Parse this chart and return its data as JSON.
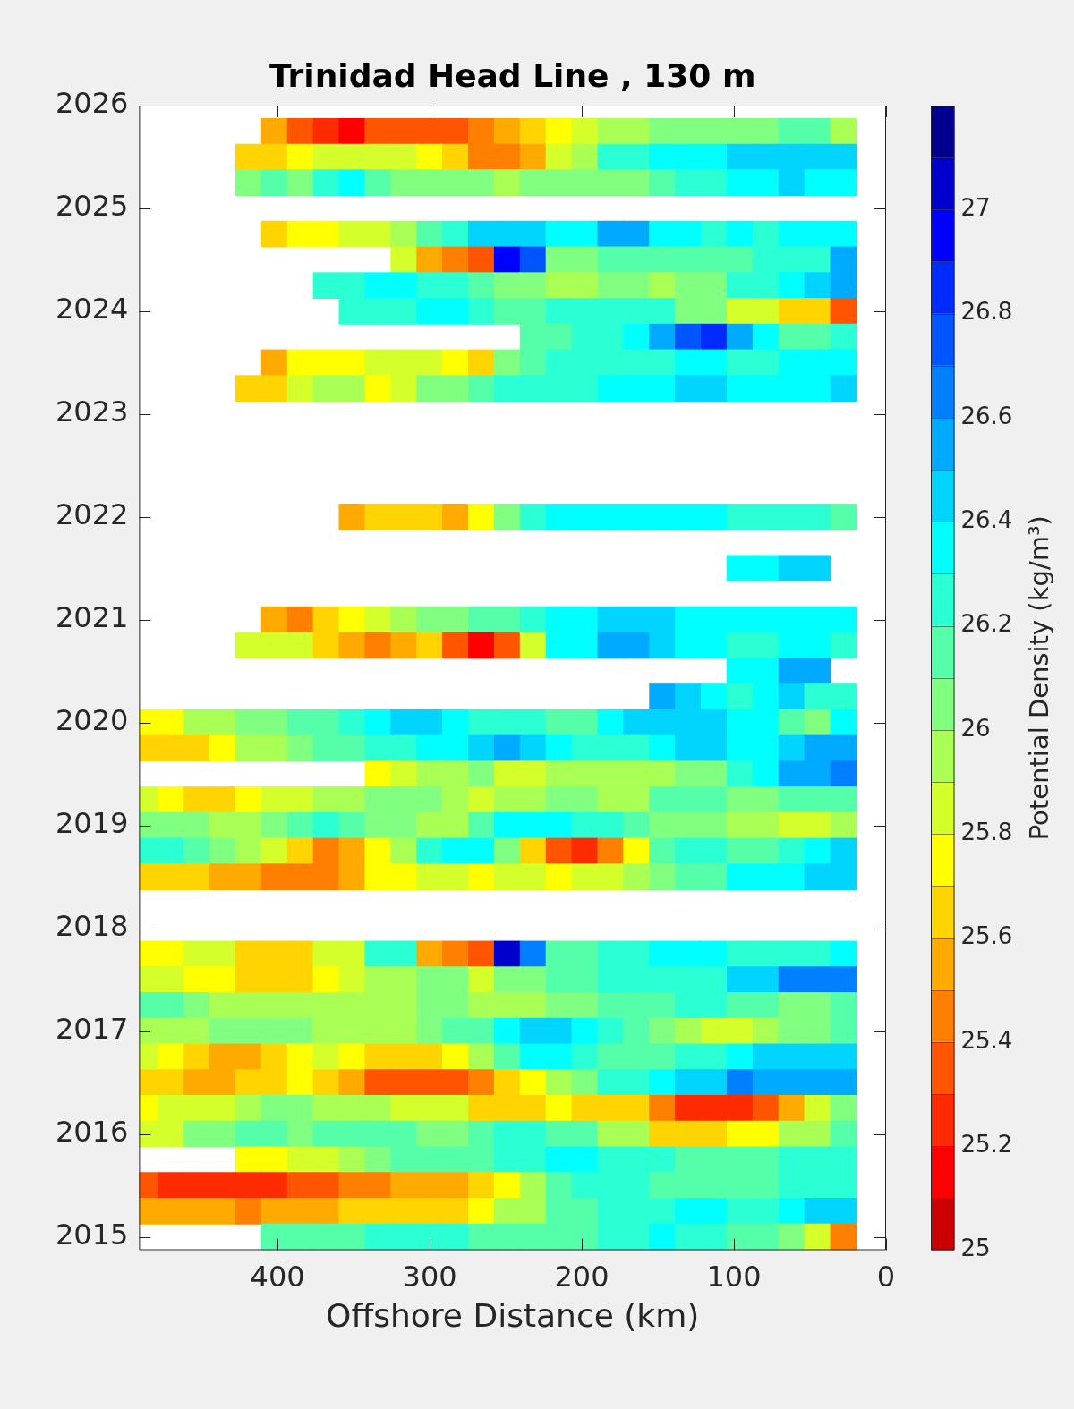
{
  "chart_data": {
    "type": "scatter",
    "title": "Trinidad Head Line , 130 m",
    "xlabel": "Offshore Distance (km)",
    "clabel": "Potential Density (kg/m³)",
    "marker": "square",
    "xlim": [
      491,
      0
    ],
    "xticks": [
      0,
      100,
      200,
      300,
      400
    ],
    "ylim": [
      2014.87,
      2026
    ],
    "yticks": [
      2015,
      2016,
      2017,
      2018,
      2019,
      2020,
      2021,
      2022,
      2023,
      2024,
      2025,
      2026
    ],
    "clim": [
      25,
      27.2
    ],
    "cticks": [
      25,
      25.2,
      25.4,
      25.6,
      25.8,
      26,
      26.2,
      26.4,
      26.6,
      26.8,
      27
    ],
    "x": [
      402,
      385,
      368,
      351,
      334,
      317,
      300,
      283,
      266,
      249,
      232,
      215,
      198,
      181,
      164,
      147,
      130,
      113,
      96,
      79,
      62,
      45,
      28,
      419,
      402,
      385,
      368,
      351,
      334,
      317,
      300,
      283,
      266,
      249,
      232,
      215,
      198,
      181,
      164,
      147,
      130,
      113,
      96,
      79,
      62,
      45,
      28,
      419,
      402,
      385,
      368,
      351,
      334,
      317,
      300,
      283,
      266,
      249,
      232,
      215,
      198,
      181,
      164,
      147,
      130,
      113,
      96,
      79,
      62,
      45,
      28,
      402,
      385,
      368,
      351,
      334,
      317,
      300,
      283,
      266,
      249,
      232,
      215,
      198,
      181,
      164,
      147,
      130,
      113,
      96,
      79,
      62,
      45,
      28,
      317,
      300,
      283,
      266,
      249,
      232,
      215,
      198,
      181,
      164,
      147,
      130,
      113,
      96,
      79,
      62,
      45,
      28,
      368,
      351,
      334,
      317,
      300,
      283,
      266,
      249,
      232,
      215,
      198,
      181,
      164,
      147,
      130,
      113,
      96,
      79,
      62,
      45,
      28,
      351,
      334,
      317,
      300,
      283,
      266,
      249,
      232,
      215,
      198,
      181,
      164,
      147,
      130,
      113,
      96,
      79,
      62,
      45,
      28,
      232,
      215,
      198,
      181,
      164,
      147,
      130,
      113,
      96,
      79,
      62,
      45,
      28,
      402,
      385,
      368,
      351,
      334,
      317,
      300,
      283,
      266,
      249,
      232,
      215,
      198,
      181,
      164,
      147,
      130,
      113,
      96,
      79,
      62,
      45,
      28,
      419,
      402,
      385,
      368,
      351,
      334,
      317,
      300,
      283,
      266,
      249,
      232,
      215,
      198,
      181,
      164,
      147,
      130,
      113,
      96,
      79,
      62,
      45,
      28,
      351,
      334,
      317,
      300,
      283,
      266,
      249,
      232,
      215,
      198,
      181,
      164,
      147,
      130,
      113,
      96,
      79,
      62,
      45,
      28,
      96,
      79,
      62,
      45,
      402,
      385,
      368,
      351,
      334,
      317,
      300,
      283,
      266,
      249,
      232,
      215,
      198,
      181,
      164,
      147,
      130,
      113,
      96,
      79,
      62,
      45,
      28,
      419,
      402,
      385,
      368,
      351,
      334,
      317,
      300,
      283,
      266,
      249,
      232,
      215,
      198,
      181,
      164,
      147,
      130,
      113,
      96,
      79,
      62,
      45,
      28,
      96,
      79,
      62,
      45,
      147,
      130,
      113,
      96,
      79,
      62,
      45,
      28,
      487,
      470,
      453,
      436,
      419,
      402,
      385,
      368,
      351,
      334,
      317,
      300,
      283,
      266,
      249,
      232,
      215,
      198,
      181,
      164,
      147,
      130,
      113,
      96,
      79,
      62,
      45,
      28,
      487,
      470,
      453,
      436,
      419,
      402,
      385,
      368,
      351,
      334,
      317,
      300,
      283,
      266,
      249,
      232,
      215,
      198,
      181,
      164,
      147,
      130,
      113,
      96,
      79,
      62,
      45,
      28,
      334,
      317,
      300,
      283,
      266,
      249,
      232,
      215,
      198,
      181,
      164,
      147,
      130,
      113,
      96,
      79,
      62,
      45,
      28,
      487,
      470,
      453,
      436,
      419,
      402,
      385,
      368,
      351,
      334,
      317,
      300,
      283,
      266,
      249,
      232,
      215,
      198,
      181,
      164,
      147,
      130,
      113,
      96,
      79,
      62,
      45,
      28,
      487,
      470,
      453,
      436,
      419,
      402,
      385,
      368,
      351,
      334,
      317,
      300,
      283,
      266,
      249,
      232,
      215,
      198,
      181,
      164,
      147,
      130,
      113,
      96,
      79,
      62,
      45,
      28,
      487,
      470,
      453,
      436,
      419,
      402,
      385,
      368,
      351,
      334,
      317,
      300,
      283,
      266,
      249,
      232,
      215,
      198,
      181,
      164,
      147,
      130,
      113,
      96,
      79,
      62,
      45,
      28,
      487,
      470,
      453,
      436,
      419,
      402,
      385,
      368,
      351,
      334,
      317,
      300,
      283,
      266,
      249,
      232,
      215,
      198,
      181,
      164,
      147,
      130,
      113,
      96,
      79,
      62,
      45,
      28,
      487,
      470,
      453,
      436,
      419,
      402,
      385,
      368,
      351,
      334,
      317,
      300,
      283,
      266,
      249,
      232,
      215,
      198,
      181,
      164,
      147,
      130,
      113,
      96,
      79,
      62,
      45,
      28,
      487,
      470,
      453,
      436,
      419,
      402,
      385,
      368,
      351,
      334,
      317,
      300,
      283,
      266,
      249,
      232,
      215,
      198,
      181,
      164,
      147,
      130,
      113,
      96,
      79,
      62,
      45,
      28,
      487,
      470,
      453,
      436,
      419,
      402,
      385,
      368,
      351,
      334,
      317,
      300,
      283,
      266,
      249,
      232,
      215,
      198,
      181,
      164,
      147,
      130,
      113,
      96,
      79,
      62,
      45,
      28,
      487,
      470,
      453,
      436,
      419,
      402,
      385,
      368,
      351,
      334,
      317,
      300,
      283,
      266,
      249,
      232,
      215,
      198,
      181,
      164,
      147,
      130,
      113,
      96,
      79,
      62,
      45,
      28,
      487,
      470,
      453,
      436,
      419,
      402,
      385,
      368,
      351,
      334,
      317,
      300,
      283,
      266,
      249,
      232,
      215,
      198,
      181,
      164,
      147,
      130,
      113,
      96,
      79,
      62,
      45,
      28,
      487,
      470,
      453,
      436,
      419,
      402,
      385,
      368,
      351,
      334,
      317,
      300,
      283,
      266,
      249,
      232,
      215,
      198,
      181,
      164,
      147,
      130,
      113,
      96,
      79,
      62,
      45,
      28,
      487,
      470,
      453,
      436,
      419,
      402,
      385,
      368,
      351,
      334,
      317,
      300,
      283,
      266,
      249,
      232,
      215,
      198,
      181,
      164,
      147,
      130,
      113,
      96,
      79,
      62,
      45,
      28,
      487,
      470,
      453,
      436,
      419,
      402,
      385,
      368,
      351,
      334,
      317,
      300,
      283,
      266,
      249,
      232,
      215,
      198,
      181,
      164,
      147,
      130,
      113,
      96,
      79,
      62,
      45,
      28,
      419,
      402,
      385,
      368,
      351,
      334,
      317,
      300,
      283,
      266,
      249,
      232,
      215,
      198,
      181,
      164,
      147,
      130,
      113,
      96,
      79,
      62,
      45,
      28,
      487,
      470,
      453,
      436,
      419,
      402,
      385,
      368,
      351,
      334,
      317,
      300,
      283,
      266,
      249,
      232,
      215,
      198,
      181,
      164,
      147,
      130,
      113,
      96,
      79,
      62,
      45,
      28,
      487,
      470,
      453,
      436,
      419,
      402,
      385,
      368,
      351,
      334,
      317,
      300,
      283,
      266,
      249,
      232,
      215,
      198,
      181,
      164,
      147,
      130,
      113,
      96,
      79,
      62,
      45,
      28,
      402,
      385,
      368,
      351,
      334,
      317,
      300,
      283,
      266,
      249,
      232,
      215,
      198,
      181,
      164,
      147,
      130,
      113,
      96,
      79,
      62,
      45,
      28
    ],
    "values": [
      2025.75,
      2025.75,
      2025.75,
      2025.75,
      2025.75,
      2025.75,
      2025.75,
      2025.75,
      2025.75,
      2025.75,
      2025.75,
      2025.75,
      2025.75,
      2025.75,
      2025.75,
      2025.75,
      2025.75,
      2025.75,
      2025.75,
      2025.75,
      2025.75,
      2025.75,
      2025.75,
      2025.5,
      2025.5,
      2025.5,
      2025.5,
      2025.5,
      2025.5,
      2025.5,
      2025.5,
      2025.5,
      2025.5,
      2025.5,
      2025.5,
      2025.5,
      2025.5,
      2025.5,
      2025.5,
      2025.5,
      2025.5,
      2025.5,
      2025.5,
      2025.5,
      2025.5,
      2025.5,
      2025.5,
      2025.25,
      2025.25,
      2025.25,
      2025.25,
      2025.25,
      2025.25,
      2025.25,
      2025.25,
      2025.25,
      2025.25,
      2025.25,
      2025.25,
      2025.25,
      2025.25,
      2025.25,
      2025.25,
      2025.25,
      2025.25,
      2025.25,
      2025.25,
      2025.25,
      2025.25,
      2025.25,
      2025.25,
      2024.75,
      2024.75,
      2024.75,
      2024.75,
      2024.75,
      2024.75,
      2024.75,
      2024.75,
      2024.75,
      2024.75,
      2024.75,
      2024.75,
      2024.75,
      2024.75,
      2024.75,
      2024.75,
      2024.75,
      2024.75,
      2024.75,
      2024.75,
      2024.75,
      2024.75,
      2024.75,
      2024.5,
      2024.5,
      2024.5,
      2024.5,
      2024.5,
      2024.5,
      2024.5,
      2024.5,
      2024.5,
      2024.5,
      2024.5,
      2024.5,
      2024.5,
      2024.5,
      2024.5,
      2024.5,
      2024.5,
      2024.5,
      2024.25,
      2024.25,
      2024.25,
      2024.25,
      2024.25,
      2024.25,
      2024.25,
      2024.25,
      2024.25,
      2024.25,
      2024.25,
      2024.25,
      2024.25,
      2024.25,
      2024.25,
      2024.25,
      2024.25,
      2024.25,
      2024.25,
      2024.25,
      2024.25,
      2024.0,
      2024.0,
      2024.0,
      2024.0,
      2024.0,
      2024.0,
      2024.0,
      2024.0,
      2024.0,
      2024.0,
      2024.0,
      2024.0,
      2024.0,
      2024.0,
      2024.0,
      2024.0,
      2024.0,
      2024.0,
      2024.0,
      2024.0,
      2023.75,
      2023.75,
      2023.75,
      2023.75,
      2023.75,
      2023.75,
      2023.75,
      2023.75,
      2023.75,
      2023.75,
      2023.75,
      2023.75,
      2023.75,
      2023.5,
      2023.5,
      2023.5,
      2023.5,
      2023.5,
      2023.5,
      2023.5,
      2023.5,
      2023.5,
      2023.5,
      2023.5,
      2023.5,
      2023.5,
      2023.5,
      2023.5,
      2023.5,
      2023.5,
      2023.5,
      2023.5,
      2023.5,
      2023.5,
      2023.5,
      2023.5,
      2023.25,
      2023.25,
      2023.25,
      2023.25,
      2023.25,
      2023.25,
      2023.25,
      2023.25,
      2023.25,
      2023.25,
      2023.25,
      2023.25,
      2023.25,
      2023.25,
      2023.25,
      2023.25,
      2023.25,
      2023.25,
      2023.25,
      2023.25,
      2023.25,
      2023.25,
      2023.25,
      2023.25,
      2022.0,
      2022.0,
      2022.0,
      2022.0,
      2022.0,
      2022.0,
      2022.0,
      2022.0,
      2022.0,
      2022.0,
      2022.0,
      2022.0,
      2022.0,
      2022.0,
      2022.0,
      2022.0,
      2022.0,
      2022.0,
      2022.0,
      2022.0,
      2021.5,
      2021.5,
      2021.5,
      2021.5,
      2021.0,
      2021.0,
      2021.0,
      2021.0,
      2021.0,
      2021.0,
      2021.0,
      2021.0,
      2021.0,
      2021.0,
      2021.0,
      2021.0,
      2021.0,
      2021.0,
      2021.0,
      2021.0,
      2021.0,
      2021.0,
      2021.0,
      2021.0,
      2021.0,
      2021.0,
      2021.0,
      2020.75,
      2020.75,
      2020.75,
      2020.75,
      2020.75,
      2020.75,
      2020.75,
      2020.75,
      2020.75,
      2020.75,
      2020.75,
      2020.75,
      2020.75,
      2020.75,
      2020.75,
      2020.75,
      2020.75,
      2020.75,
      2020.75,
      2020.75,
      2020.75,
      2020.75,
      2020.75,
      2020.75,
      2020.5,
      2020.5,
      2020.5,
      2020.5,
      2020.25,
      2020.25,
      2020.25,
      2020.25,
      2020.25,
      2020.25,
      2020.25,
      2020.25,
      2020.0,
      2020.0,
      2020.0,
      2020.0,
      2020.0,
      2020.0,
      2020.0,
      2020.0,
      2020.0,
      2020.0,
      2020.0,
      2020.0,
      2020.0,
      2020.0,
      2020.0,
      2020.0,
      2020.0,
      2020.0,
      2020.0,
      2020.0,
      2020.0,
      2020.0,
      2020.0,
      2020.0,
      2020.0,
      2020.0,
      2020.0,
      2020.0,
      2019.75,
      2019.75,
      2019.75,
      2019.75,
      2019.75,
      2019.75,
      2019.75,
      2019.75,
      2019.75,
      2019.75,
      2019.75,
      2019.75,
      2019.75,
      2019.75,
      2019.75,
      2019.75,
      2019.75,
      2019.75,
      2019.75,
      2019.75,
      2019.75,
      2019.75,
      2019.75,
      2019.75,
      2019.75,
      2019.75,
      2019.75,
      2019.75,
      2019.5,
      2019.5,
      2019.5,
      2019.5,
      2019.5,
      2019.5,
      2019.5,
      2019.5,
      2019.5,
      2019.5,
      2019.5,
      2019.5,
      2019.5,
      2019.5,
      2019.5,
      2019.5,
      2019.5,
      2019.5,
      2019.5,
      2019.25,
      2019.25,
      2019.25,
      2019.25,
      2019.25,
      2019.25,
      2019.25,
      2019.25,
      2019.25,
      2019.25,
      2019.25,
      2019.25,
      2019.25,
      2019.25,
      2019.25,
      2019.25,
      2019.25,
      2019.25,
      2019.25,
      2019.25,
      2019.25,
      2019.25,
      2019.25,
      2019.25,
      2019.25,
      2019.25,
      2019.25,
      2019.25,
      2019.0,
      2019.0,
      2019.0,
      2019.0,
      2019.0,
      2019.0,
      2019.0,
      2019.0,
      2019.0,
      2019.0,
      2019.0,
      2019.0,
      2019.0,
      2019.0,
      2019.0,
      2019.0,
      2019.0,
      2019.0,
      2019.0,
      2019.0,
      2019.0,
      2019.0,
      2019.0,
      2019.0,
      2019.0,
      2019.0,
      2019.0,
      2019.0,
      2018.75,
      2018.75,
      2018.75,
      2018.75,
      2018.75,
      2018.75,
      2018.75,
      2018.75,
      2018.75,
      2018.75,
      2018.75,
      2018.75,
      2018.75,
      2018.75,
      2018.75,
      2018.75,
      2018.75,
      2018.75,
      2018.75,
      2018.75,
      2018.75,
      2018.75,
      2018.75,
      2018.75,
      2018.75,
      2018.75,
      2018.75,
      2018.75,
      2018.5,
      2018.5,
      2018.5,
      2018.5,
      2018.5,
      2018.5,
      2018.5,
      2018.5,
      2018.5,
      2018.5,
      2018.5,
      2018.5,
      2018.5,
      2018.5,
      2018.5,
      2018.5,
      2018.5,
      2018.5,
      2018.5,
      2018.5,
      2018.5,
      2018.5,
      2018.5,
      2018.5,
      2018.5,
      2018.5,
      2018.5,
      2018.5,
      2017.75,
      2017.75,
      2017.75,
      2017.75,
      2017.75,
      2017.75,
      2017.75,
      2017.75,
      2017.75,
      2017.75,
      2017.75,
      2017.75,
      2017.75,
      2017.75,
      2017.75,
      2017.75,
      2017.75,
      2017.75,
      2017.75,
      2017.75,
      2017.75,
      2017.75,
      2017.75,
      2017.75,
      2017.75,
      2017.75,
      2017.75,
      2017.75,
      2017.5,
      2017.5,
      2017.5,
      2017.5,
      2017.5,
      2017.5,
      2017.5,
      2017.5,
      2017.5,
      2017.5,
      2017.5,
      2017.5,
      2017.5,
      2017.5,
      2017.5,
      2017.5,
      2017.5,
      2017.5,
      2017.5,
      2017.5,
      2017.5,
      2017.5,
      2017.5,
      2017.5,
      2017.5,
      2017.5,
      2017.5,
      2017.5,
      2017.25,
      2017.25,
      2017.25,
      2017.25,
      2017.25,
      2017.25,
      2017.25,
      2017.25,
      2017.25,
      2017.25,
      2017.25,
      2017.25,
      2017.25,
      2017.25,
      2017.25,
      2017.25,
      2017.25,
      2017.25,
      2017.25,
      2017.25,
      2017.25,
      2017.25,
      2017.25,
      2017.25,
      2017.25,
      2017.25,
      2017.25,
      2017.25,
      2017.0,
      2017.0,
      2017.0,
      2017.0,
      2017.0,
      2017.0,
      2017.0,
      2017.0,
      2017.0,
      2017.0,
      2017.0,
      2017.0,
      2017.0,
      2017.0,
      2017.0,
      2017.0,
      2017.0,
      2017.0,
      2017.0,
      2017.0,
      2017.0,
      2017.0,
      2017.0,
      2017.0,
      2017.0,
      2017.0,
      2017.0,
      2017.0,
      2016.75,
      2016.75,
      2016.75,
      2016.75,
      2016.75,
      2016.75,
      2016.75,
      2016.75,
      2016.75,
      2016.75,
      2016.75,
      2016.75,
      2016.75,
      2016.75,
      2016.75,
      2016.75,
      2016.75,
      2016.75,
      2016.75,
      2016.75,
      2016.75,
      2016.75,
      2016.75,
      2016.75,
      2016.75,
      2016.75,
      2016.75,
      2016.75,
      2016.5,
      2016.5,
      2016.5,
      2016.5,
      2016.5,
      2016.5,
      2016.5,
      2016.5,
      2016.5,
      2016.5,
      2016.5,
      2016.5,
      2016.5,
      2016.5,
      2016.5,
      2016.5,
      2016.5,
      2016.5,
      2016.5,
      2016.5,
      2016.5,
      2016.5,
      2016.5,
      2016.5,
      2016.5,
      2016.5,
      2016.5,
      2016.5,
      2016.25,
      2016.25,
      2016.25,
      2016.25,
      2016.25,
      2016.25,
      2016.25,
      2016.25,
      2016.25,
      2016.25,
      2016.25,
      2016.25,
      2016.25,
      2016.25,
      2016.25,
      2016.25,
      2016.25,
      2016.25,
      2016.25,
      2016.25,
      2016.25,
      2016.25,
      2016.25,
      2016.25,
      2016.25,
      2016.25,
      2016.25,
      2016.25,
      2016.0,
      2016.0,
      2016.0,
      2016.0,
      2016.0,
      2016.0,
      2016.0,
      2016.0,
      2016.0,
      2016.0,
      2016.0,
      2016.0,
      2016.0,
      2016.0,
      2016.0,
      2016.0,
      2016.0,
      2016.0,
      2016.0,
      2016.0,
      2016.0,
      2016.0,
      2016.0,
      2016.0,
      2016.0,
      2016.0,
      2016.0,
      2016.0,
      2015.75,
      2015.75,
      2015.75,
      2015.75,
      2015.75,
      2015.75,
      2015.75,
      2015.75,
      2015.75,
      2015.75,
      2015.75,
      2015.75,
      2015.75,
      2015.75,
      2015.75,
      2015.75,
      2015.75,
      2015.75,
      2015.75,
      2015.75,
      2015.75,
      2015.75,
      2015.75,
      2015.75,
      2015.5,
      2015.5,
      2015.5,
      2015.5,
      2015.5,
      2015.5,
      2015.5,
      2015.5,
      2015.5,
      2015.5,
      2015.5,
      2015.5,
      2015.5,
      2015.5,
      2015.5,
      2015.5,
      2015.5,
      2015.5,
      2015.5,
      2015.5,
      2015.5,
      2015.5,
      2015.5,
      2015.5,
      2015.5,
      2015.5,
      2015.5,
      2015.5,
      2015.25,
      2015.25,
      2015.25,
      2015.25,
      2015.25,
      2015.25,
      2015.25,
      2015.25,
      2015.25,
      2015.25,
      2015.25,
      2015.25,
      2015.25,
      2015.25,
      2015.25,
      2015.25,
      2015.25,
      2015.25,
      2015.25,
      2015.25,
      2015.25,
      2015.25,
      2015.25,
      2015.25,
      2015.25,
      2015.25,
      2015.25,
      2015.25,
      2015.0,
      2015.0,
      2015.0,
      2015.0,
      2015.0,
      2015.0,
      2015.0,
      2015.0,
      2015.0,
      2015.0,
      2015.0,
      2015.0,
      2015.0,
      2015.0,
      2015.0,
      2015.0,
      2015.0,
      2015.0,
      2015.0,
      2015.0,
      2015.0,
      2015.0,
      2015.0
    ],
    "cvalues": [
      25.5,
      25.3,
      25.2,
      25.1,
      25.3,
      25.3,
      25.3,
      25.3,
      25.4,
      25.5,
      25.6,
      25.7,
      25.8,
      25.9,
      25.9,
      26.0,
      26.0,
      26.0,
      26.0,
      26.0,
      26.1,
      26.1,
      25.9,
      25.6,
      25.6,
      25.7,
      25.8,
      25.8,
      25.8,
      25.8,
      25.7,
      25.6,
      25.4,
      25.4,
      25.5,
      25.8,
      25.9,
      26.2,
      26.2,
      26.3,
      26.3,
      26.3,
      26.4,
      26.4,
      26.4,
      26.4,
      26.4,
      26.0,
      26.1,
      26.0,
      26.2,
      26.3,
      26.1,
      26.0,
      26.0,
      26.0,
      26.0,
      25.9,
      26.0,
      26.0,
      26.0,
      26.0,
      26.0,
      26.1,
      26.2,
      26.2,
      26.3,
      26.3,
      26.4,
      26.3,
      26.3,
      25.6,
      25.7,
      25.7,
      25.8,
      25.8,
      25.9,
      26.1,
      26.2,
      26.4,
      26.4,
      26.4,
      26.3,
      26.3,
      26.5,
      26.5,
      26.3,
      26.3,
      26.2,
      26.3,
      26.2,
      26.3,
      26.3,
      26.3,
      25.8,
      25.5,
      25.4,
      25.3,
      26.9,
      26.7,
      26.0,
      26.0,
      26.1,
      26.1,
      26.1,
      26.1,
      26.1,
      26.1,
      26.2,
      26.2,
      26.2,
      26.5,
      26.2,
      26.2,
      26.3,
      26.3,
      26.2,
      26.2,
      26.1,
      26.0,
      26.0,
      25.9,
      25.9,
      26.0,
      26.0,
      25.9,
      26.0,
      26.0,
      26.2,
      26.2,
      26.3,
      26.4,
      26.5,
      26.2,
      26.2,
      26.2,
      26.3,
      26.3,
      26.2,
      26.1,
      26.1,
      26.2,
      26.2,
      26.2,
      26.2,
      26.2,
      26.0,
      26.0,
      25.8,
      25.8,
      25.6,
      25.6,
      25.3,
      26.1,
      26.1,
      26.2,
      26.2,
      26.3,
      26.5,
      26.7,
      26.8,
      26.5,
      26.3,
      26.1,
      26.1,
      26.2,
      25.5,
      25.7,
      25.7,
      25.7,
      25.8,
      25.8,
      25.8,
      25.7,
      25.6,
      26.0,
      26.1,
      26.2,
      26.2,
      26.2,
      26.2,
      26.2,
      26.3,
      26.3,
      26.2,
      26.2,
      26.3,
      26.3,
      26.3,
      25.6,
      25.6,
      25.8,
      25.9,
      25.9,
      25.7,
      25.8,
      26.0,
      26.0,
      26.1,
      26.2,
      26.2,
      26.2,
      26.2,
      26.3,
      26.3,
      26.3,
      26.4,
      26.4,
      26.3,
      26.3,
      26.3,
      26.3,
      26.4,
      25.5,
      25.6,
      25.6,
      25.6,
      25.5,
      25.7,
      26.0,
      26.2,
      26.3,
      26.3,
      26.3,
      26.3,
      26.3,
      26.3,
      26.3,
      26.2,
      26.2,
      26.2,
      26.2,
      26.1,
      26.3,
      26.3,
      26.4,
      26.4,
      25.5,
      25.4,
      25.6,
      25.7,
      25.8,
      25.9,
      26.0,
      26.0,
      26.1,
      26.1,
      26.2,
      26.3,
      26.3,
      26.4,
      26.4,
      26.4,
      26.3,
      26.3,
      26.3,
      26.3,
      26.3,
      26.3,
      26.3,
      25.8,
      25.8,
      25.8,
      25.6,
      25.5,
      25.4,
      25.5,
      25.6,
      25.3,
      25.1,
      25.3,
      25.8,
      26.3,
      26.3,
      26.5,
      26.5,
      26.4,
      26.3,
      26.3,
      26.2,
      26.2,
      26.3,
      26.3,
      26.2,
      26.3,
      26.3,
      26.5,
      26.5,
      26.5,
      26.4,
      26.3,
      26.2,
      26.3,
      26.4,
      26.2,
      26.2,
      25.7,
      25.7,
      25.9,
      25.9,
      26.0,
      26.0,
      26.1,
      26.1,
      26.2,
      26.3,
      26.4,
      26.4,
      26.3,
      26.2,
      26.2,
      26.2,
      26.1,
      26.1,
      26.3,
      26.4,
      26.4,
      26.4,
      26.4,
      26.3,
      26.3,
      26.1,
      26.0,
      26.3,
      25.6,
      25.6,
      25.6,
      25.7,
      25.9,
      25.9,
      26.0,
      26.1,
      26.1,
      26.2,
      26.2,
      26.3,
      26.3,
      26.4,
      26.5,
      26.4,
      26.3,
      26.2,
      26.2,
      26.2,
      26.3,
      26.4,
      26.4,
      26.3,
      26.3,
      26.4,
      26.5,
      26.5,
      25.7,
      25.8,
      25.9,
      25.9,
      26.0,
      25.8,
      25.8,
      25.9,
      25.9,
      25.9,
      25.9,
      25.9,
      26.0,
      26.0,
      26.2,
      26.3,
      26.5,
      26.5,
      26.6,
      25.8,
      25.7,
      25.6,
      25.6,
      25.7,
      25.8,
      25.8,
      25.9,
      25.9,
      26.0,
      26.0,
      26.0,
      25.9,
      25.8,
      25.9,
      25.9,
      26.0,
      26.0,
      25.9,
      25.9,
      26.1,
      26.1,
      26.1,
      26.0,
      26.0,
      26.1,
      26.1,
      26.1,
      26.0,
      26.0,
      26.0,
      25.9,
      25.9,
      26.0,
      26.1,
      26.2,
      26.1,
      26.0,
      26.0,
      25.9,
      25.9,
      26.1,
      26.3,
      26.3,
      26.3,
      26.2,
      26.2,
      26.1,
      26.0,
      26.0,
      26.0,
      25.9,
      25.9,
      25.8,
      25.8,
      25.9,
      26.2,
      26.2,
      26.1,
      26.0,
      25.9,
      25.8,
      25.6,
      25.4,
      25.5,
      25.7,
      25.9,
      26.2,
      26.3,
      26.3,
      26.0,
      25.6,
      25.3,
      25.2,
      25.4,
      25.7,
      26.1,
      26.2,
      26.2,
      26.1,
      26.1,
      26.2,
      26.3,
      26.4,
      25.6,
      25.6,
      25.6,
      25.5,
      25.5,
      25.4,
      25.4,
      25.4,
      25.5,
      25.7,
      25.7,
      25.8,
      25.8,
      25.7,
      25.8,
      25.8,
      25.7,
      25.8,
      25.8,
      25.9,
      26.0,
      26.1,
      26.1,
      26.3,
      26.3,
      26.3,
      26.4,
      26.4,
      25.7,
      25.7,
      25.8,
      25.8,
      25.6,
      25.6,
      25.6,
      25.8,
      25.8,
      26.2,
      26.2,
      25.5,
      25.4,
      25.3,
      27.0,
      26.6,
      26.1,
      26.1,
      26.2,
      26.2,
      26.3,
      26.3,
      26.3,
      26.2,
      26.2,
      26.2,
      26.2,
      26.3,
      25.8,
      25.8,
      25.7,
      25.7,
      25.6,
      25.6,
      25.6,
      25.7,
      25.8,
      25.9,
      25.9,
      26.0,
      26.0,
      25.8,
      26.0,
      26.0,
      26.1,
      26.1,
      26.2,
      26.2,
      26.2,
      26.2,
      26.2,
      26.4,
      26.4,
      26.6,
      26.6,
      26.6,
      26.1,
      26.1,
      26.0,
      25.9,
      25.9,
      25.9,
      25.9,
      25.9,
      25.9,
      25.9,
      25.9,
      26.0,
      26.0,
      25.9,
      25.9,
      25.9,
      26.0,
      26.0,
      26.1,
      26.1,
      26.1,
      26.2,
      26.2,
      26.1,
      26.1,
      26.0,
      26.0,
      26.1,
      25.9,
      25.9,
      25.9,
      26.0,
      26.0,
      26.0,
      26.0,
      25.9,
      25.9,
      25.9,
      25.9,
      26.0,
      26.1,
      26.1,
      26.3,
      26.4,
      26.4,
      26.3,
      26.2,
      26.1,
      26.0,
      25.9,
      25.8,
      25.8,
      25.9,
      26.0,
      26.0,
      26.1,
      25.8,
      25.7,
      25.6,
      25.5,
      25.5,
      25.6,
      25.7,
      25.8,
      25.7,
      25.6,
      25.6,
      25.6,
      25.7,
      25.9,
      26.1,
      26.3,
      26.3,
      26.2,
      26.1,
      26.1,
      26.1,
      26.2,
      26.2,
      26.3,
      26.4,
      26.4,
      26.4,
      26.4,
      25.6,
      25.6,
      25.5,
      25.5,
      25.6,
      25.6,
      25.7,
      25.6,
      25.5,
      25.3,
      25.3,
      25.3,
      25.3,
      25.4,
      25.6,
      25.7,
      25.9,
      26.0,
      26.2,
      26.2,
      26.3,
      26.4,
      26.4,
      26.6,
      26.5,
      26.5,
      26.5,
      26.5,
      25.7,
      25.8,
      25.8,
      25.8,
      25.9,
      26.0,
      26.0,
      25.9,
      25.9,
      25.9,
      25.8,
      25.8,
      25.8,
      25.6,
      25.6,
      25.6,
      25.7,
      25.6,
      25.6,
      25.6,
      25.4,
      25.2,
      25.2,
      25.2,
      25.3,
      25.5,
      25.8,
      26.0,
      25.8,
      25.8,
      26.0,
      26.0,
      26.1,
      26.1,
      26.0,
      26.1,
      26.1,
      26.1,
      26.1,
      26.0,
      26.0,
      26.1,
      26.2,
      26.2,
      26.1,
      26.1,
      25.9,
      25.9,
      25.6,
      25.6,
      25.6,
      25.7,
      25.7,
      25.9,
      25.9,
      26.1,
      25.7,
      25.7,
      25.8,
      25.8,
      25.9,
      26.0,
      26.1,
      26.1,
      26.1,
      26.1,
      26.2,
      26.2,
      26.3,
      26.3,
      26.2,
      26.2,
      26.2,
      26.1,
      26.1,
      26.1,
      26.1,
      26.2,
      26.2,
      26.2,
      25.3,
      25.2,
      25.2,
      25.2,
      25.2,
      25.2,
      25.3,
      25.3,
      25.4,
      25.4,
      25.5,
      25.5,
      25.5,
      25.6,
      25.7,
      25.9,
      26.1,
      26.2,
      26.2,
      26.2,
      26.1,
      26.1,
      26.1,
      26.1,
      26.1,
      26.2,
      26.2,
      26.2,
      25.5,
      25.5,
      25.5,
      25.5,
      25.4,
      25.5,
      25.5,
      25.5,
      25.6,
      25.6,
      25.6,
      25.6,
      25.6,
      25.7,
      25.9,
      25.9,
      26.1,
      26.1,
      26.2,
      26.2,
      26.2,
      26.3,
      26.3,
      26.2,
      26.2,
      26.3,
      26.4,
      26.4,
      26.1,
      26.1,
      26.1,
      26.1,
      26.2,
      26.2,
      26.2,
      26.2,
      26.1,
      26.1,
      26.1,
      26.1,
      26.1,
      26.2,
      26.2,
      26.3,
      26.2,
      26.2,
      26.1,
      26.1,
      26.0,
      25.8,
      25.4
    ]
  }
}
